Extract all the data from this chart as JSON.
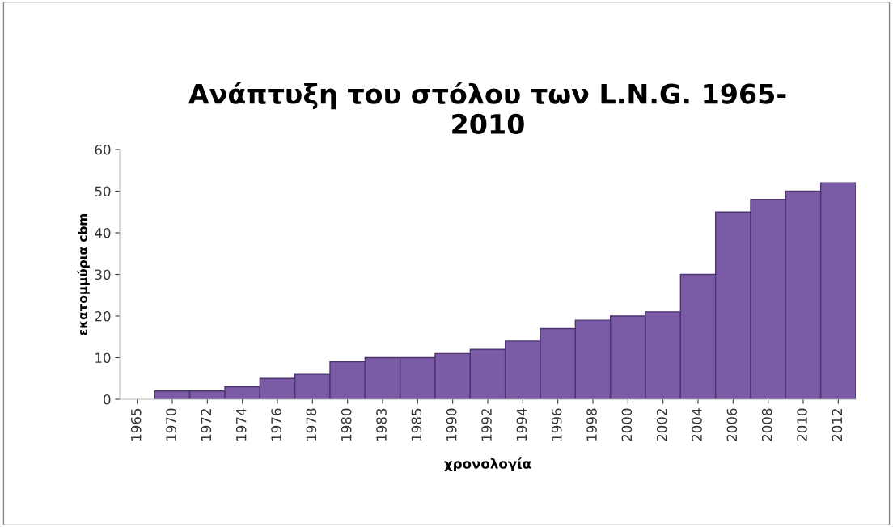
{
  "chart_data": {
    "type": "bar",
    "title": "Ανάπτυξη του στόλου των L.N.G. 1965-\n2010",
    "xlabel": "χρονολογία",
    "ylabel": "εκατομμύρια cbm",
    "categories": [
      "1965",
      "1970",
      "1972",
      "1974",
      "1976",
      "1978",
      "1980",
      "1983",
      "1985",
      "1990",
      "1992",
      "1994",
      "1996",
      "1998",
      "2000",
      "2002",
      "2004",
      "2006",
      "2008",
      "2010",
      "2012"
    ],
    "values": [
      null,
      2,
      2,
      3,
      5,
      6,
      9,
      10,
      10,
      11,
      12,
      14,
      17,
      19,
      20,
      21,
      30,
      45,
      48,
      50,
      52
    ],
    "color": "#7b5aa6",
    "ylim": [
      0,
      60
    ],
    "yticks": [
      0,
      10,
      20,
      30,
      40,
      50,
      60
    ],
    "grid": false,
    "legend": false
  }
}
